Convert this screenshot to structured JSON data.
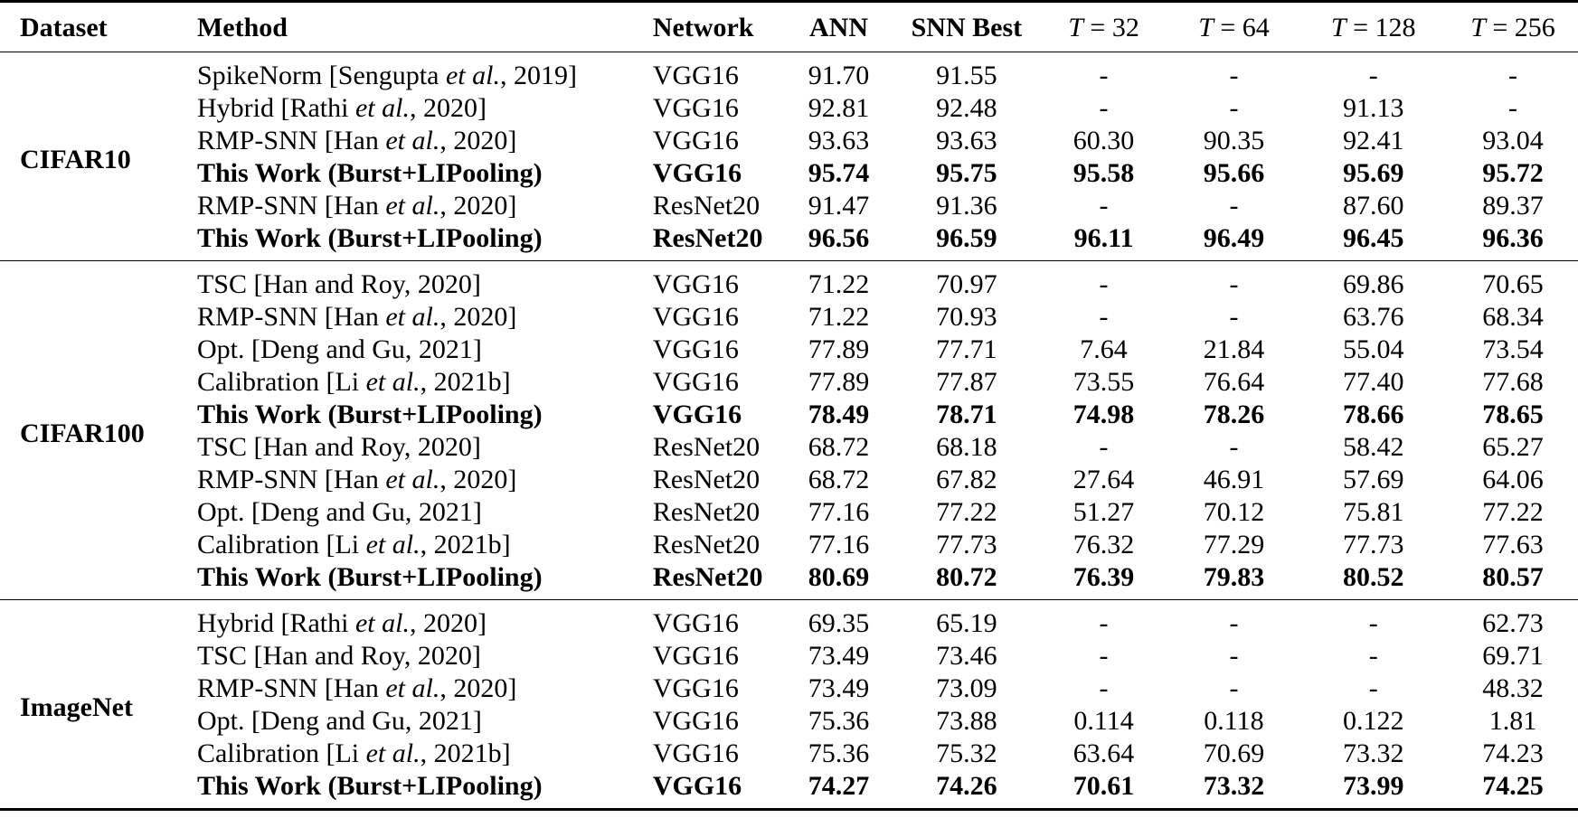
{
  "table": {
    "headers": {
      "dataset": "Dataset",
      "method": "Method",
      "network": "Network",
      "ann": "ANN",
      "snn_best": "SNN Best",
      "t32": {
        "var": "T",
        "op": " = ",
        "val": "32"
      },
      "t64": {
        "var": "T",
        "op": " = ",
        "val": "64"
      },
      "t128": {
        "var": "T",
        "op": " = ",
        "val": "128"
      },
      "t256": {
        "var": "T",
        "op": " = ",
        "val": "256"
      }
    },
    "groups": [
      {
        "dataset": "CIFAR10",
        "rows": [
          {
            "method_pre": "SpikeNorm [Sengupta ",
            "method_it": "et al.",
            "method_post": ", 2019]",
            "network": "VGG16",
            "ann": "91.70",
            "snn_best": "91.55",
            "t32": "-",
            "t64": "-",
            "t128": "-",
            "t256": "-",
            "bold": false
          },
          {
            "method_pre": "Hybrid [Rathi ",
            "method_it": "et al.",
            "method_post": ", 2020]",
            "network": "VGG16",
            "ann": "92.81",
            "snn_best": "92.48",
            "t32": "-",
            "t64": "-",
            "t128": "91.13",
            "t256": "-",
            "bold": false
          },
          {
            "method_pre": "RMP-SNN [Han ",
            "method_it": "et al.",
            "method_post": ", 2020]",
            "network": "VGG16",
            "ann": "93.63",
            "snn_best": "93.63",
            "t32": "60.30",
            "t64": "90.35",
            "t128": "92.41",
            "t256": "93.04",
            "bold": false
          },
          {
            "method_pre": "This Work (Burst+LIPooling)",
            "method_it": "",
            "method_post": "",
            "network": "VGG16",
            "ann": "95.74",
            "snn_best": "95.75",
            "t32": "95.58",
            "t64": "95.66",
            "t128": "95.69",
            "t256": "95.72",
            "bold": true
          },
          {
            "method_pre": "RMP-SNN [Han ",
            "method_it": "et al.",
            "method_post": ", 2020]",
            "network": "ResNet20",
            "ann": "91.47",
            "snn_best": "91.36",
            "t32": "-",
            "t64": "-",
            "t128": "87.60",
            "t256": "89.37",
            "bold": false
          },
          {
            "method_pre": "This Work (Burst+LIPooling)",
            "method_it": "",
            "method_post": "",
            "network": "ResNet20",
            "ann": "96.56",
            "snn_best": "96.59",
            "t32": "96.11",
            "t64": "96.49",
            "t128": "96.45",
            "t256": "96.36",
            "bold": true
          }
        ]
      },
      {
        "dataset": "CIFAR100",
        "rows": [
          {
            "method_pre": "TSC [Han and Roy, 2020]",
            "method_it": "",
            "method_post": "",
            "network": "VGG16",
            "ann": "71.22",
            "snn_best": "70.97",
            "t32": "-",
            "t64": "-",
            "t128": "69.86",
            "t256": "70.65",
            "bold": false
          },
          {
            "method_pre": "RMP-SNN [Han ",
            "method_it": "et al.",
            "method_post": ", 2020]",
            "network": "VGG16",
            "ann": "71.22",
            "snn_best": "70.93",
            "t32": "-",
            "t64": "-",
            "t128": "63.76",
            "t256": "68.34",
            "bold": false
          },
          {
            "method_pre": "Opt. [Deng and Gu, 2021]",
            "method_it": "",
            "method_post": "",
            "network": "VGG16",
            "ann": "77.89",
            "snn_best": "77.71",
            "t32": "7.64",
            "t64": "21.84",
            "t128": "55.04",
            "t256": "73.54",
            "bold": false
          },
          {
            "method_pre": "Calibration [Li ",
            "method_it": "et al.",
            "method_post": ", 2021b]",
            "network": "VGG16",
            "ann": "77.89",
            "snn_best": "77.87",
            "t32": "73.55",
            "t64": "76.64",
            "t128": "77.40",
            "t256": "77.68",
            "bold": false
          },
          {
            "method_pre": "This Work (Burst+LIPooling)",
            "method_it": "",
            "method_post": "",
            "network": "VGG16",
            "ann": "78.49",
            "snn_best": "78.71",
            "t32": "74.98",
            "t64": "78.26",
            "t128": "78.66",
            "t256": "78.65",
            "bold": true
          },
          {
            "method_pre": "TSC [Han and Roy, 2020]",
            "method_it": "",
            "method_post": "",
            "network": "ResNet20",
            "ann": "68.72",
            "snn_best": "68.18",
            "t32": "-",
            "t64": "-",
            "t128": "58.42",
            "t256": "65.27",
            "bold": false
          },
          {
            "method_pre": "RMP-SNN [Han ",
            "method_it": "et al.",
            "method_post": ", 2020]",
            "network": "ResNet20",
            "ann": "68.72",
            "snn_best": "67.82",
            "t32": "27.64",
            "t64": "46.91",
            "t128": "57.69",
            "t256": "64.06",
            "bold": false
          },
          {
            "method_pre": "Opt. [Deng and Gu, 2021]",
            "method_it": "",
            "method_post": "",
            "network": "ResNet20",
            "ann": "77.16",
            "snn_best": "77.22",
            "t32": "51.27",
            "t64": "70.12",
            "t128": "75.81",
            "t256": "77.22",
            "bold": false
          },
          {
            "method_pre": "Calibration [Li ",
            "method_it": "et al.",
            "method_post": ", 2021b]",
            "network": "ResNet20",
            "ann": "77.16",
            "snn_best": "77.73",
            "t32": "76.32",
            "t64": "77.29",
            "t128": "77.73",
            "t256": "77.63",
            "bold": false
          },
          {
            "method_pre": "This Work (Burst+LIPooling)",
            "method_it": "",
            "method_post": "",
            "network": "ResNet20",
            "ann": "80.69",
            "snn_best": "80.72",
            "t32": "76.39",
            "t64": "79.83",
            "t128": "80.52",
            "t256": "80.57",
            "bold": true
          }
        ]
      },
      {
        "dataset": "ImageNet",
        "rows": [
          {
            "method_pre": "Hybrid [Rathi ",
            "method_it": "et al.",
            "method_post": ", 2020]",
            "network": "VGG16",
            "ann": "69.35",
            "snn_best": "65.19",
            "t32": "-",
            "t64": "-",
            "t128": "-",
            "t256": "62.73",
            "bold": false
          },
          {
            "method_pre": "TSC [Han and Roy, 2020]",
            "method_it": "",
            "method_post": "",
            "network": "VGG16",
            "ann": "73.49",
            "snn_best": "73.46",
            "t32": "-",
            "t64": "-",
            "t128": "-",
            "t256": "69.71",
            "bold": false
          },
          {
            "method_pre": "RMP-SNN [Han ",
            "method_it": "et al.",
            "method_post": ", 2020]",
            "network": "VGG16",
            "ann": "73.49",
            "snn_best": "73.09",
            "t32": "-",
            "t64": "-",
            "t128": "-",
            "t256": "48.32",
            "bold": false
          },
          {
            "method_pre": "Opt. [Deng and Gu, 2021]",
            "method_it": "",
            "method_post": "",
            "network": "VGG16",
            "ann": "75.36",
            "snn_best": "73.88",
            "t32": "0.114",
            "t64": "0.118",
            "t128": "0.122",
            "t256": "1.81",
            "bold": false
          },
          {
            "method_pre": "Calibration [Li ",
            "method_it": "et al.",
            "method_post": ", 2021b]",
            "network": "VGG16",
            "ann": "75.36",
            "snn_best": "75.32",
            "t32": "63.64",
            "t64": "70.69",
            "t128": "73.32",
            "t256": "74.23",
            "bold": false
          },
          {
            "method_pre": "This Work (Burst+LIPooling)",
            "method_it": "",
            "method_post": "",
            "network": "VGG16",
            "ann": "74.27",
            "snn_best": "74.26",
            "t32": "70.61",
            "t64": "73.32",
            "t128": "73.99",
            "t256": "74.25",
            "bold": true
          }
        ]
      }
    ]
  },
  "chart_data": {
    "type": "table",
    "title": "",
    "columns": [
      "Dataset",
      "Method",
      "Network",
      "ANN",
      "SNN Best",
      "T = 32",
      "T = 64",
      "T = 128",
      "T = 256"
    ],
    "rows": [
      [
        "CIFAR10",
        "SpikeNorm [Sengupta et al., 2019]",
        "VGG16",
        "91.70",
        "91.55",
        "-",
        "-",
        "-",
        "-"
      ],
      [
        "CIFAR10",
        "Hybrid [Rathi et al., 2020]",
        "VGG16",
        "92.81",
        "92.48",
        "-",
        "-",
        "91.13",
        "-"
      ],
      [
        "CIFAR10",
        "RMP-SNN [Han et al., 2020]",
        "VGG16",
        "93.63",
        "93.63",
        "60.30",
        "90.35",
        "92.41",
        "93.04"
      ],
      [
        "CIFAR10",
        "This Work (Burst+LIPooling)",
        "VGG16",
        "95.74",
        "95.75",
        "95.58",
        "95.66",
        "95.69",
        "95.72"
      ],
      [
        "CIFAR10",
        "RMP-SNN [Han et al., 2020]",
        "ResNet20",
        "91.47",
        "91.36",
        "-",
        "-",
        "87.60",
        "89.37"
      ],
      [
        "CIFAR10",
        "This Work (Burst+LIPooling)",
        "ResNet20",
        "96.56",
        "96.59",
        "96.11",
        "96.49",
        "96.45",
        "96.36"
      ],
      [
        "CIFAR100",
        "TSC [Han and Roy, 2020]",
        "VGG16",
        "71.22",
        "70.97",
        "-",
        "-",
        "69.86",
        "70.65"
      ],
      [
        "CIFAR100",
        "RMP-SNN [Han et al., 2020]",
        "VGG16",
        "71.22",
        "70.93",
        "-",
        "-",
        "63.76",
        "68.34"
      ],
      [
        "CIFAR100",
        "Opt. [Deng and Gu, 2021]",
        "VGG16",
        "77.89",
        "77.71",
        "7.64",
        "21.84",
        "55.04",
        "73.54"
      ],
      [
        "CIFAR100",
        "Calibration [Li et al., 2021b]",
        "VGG16",
        "77.89",
        "77.87",
        "73.55",
        "76.64",
        "77.40",
        "77.68"
      ],
      [
        "CIFAR100",
        "This Work (Burst+LIPooling)",
        "VGG16",
        "78.49",
        "78.71",
        "74.98",
        "78.26",
        "78.66",
        "78.65"
      ],
      [
        "CIFAR100",
        "TSC [Han and Roy, 2020]",
        "ResNet20",
        "68.72",
        "68.18",
        "-",
        "-",
        "58.42",
        "65.27"
      ],
      [
        "CIFAR100",
        "RMP-SNN [Han et al., 2020]",
        "ResNet20",
        "68.72",
        "67.82",
        "27.64",
        "46.91",
        "57.69",
        "64.06"
      ],
      [
        "CIFAR100",
        "Opt. [Deng and Gu, 2021]",
        "ResNet20",
        "77.16",
        "77.22",
        "51.27",
        "70.12",
        "75.81",
        "77.22"
      ],
      [
        "CIFAR100",
        "Calibration [Li et al., 2021b]",
        "ResNet20",
        "77.16",
        "77.73",
        "76.32",
        "77.29",
        "77.73",
        "77.63"
      ],
      [
        "CIFAR100",
        "This Work (Burst+LIPooling)",
        "ResNet20",
        "80.69",
        "80.72",
        "76.39",
        "79.83",
        "80.52",
        "80.57"
      ],
      [
        "ImageNet",
        "Hybrid [Rathi et al., 2020]",
        "VGG16",
        "69.35",
        "65.19",
        "-",
        "-",
        "-",
        "62.73"
      ],
      [
        "ImageNet",
        "TSC [Han and Roy, 2020]",
        "VGG16",
        "73.49",
        "73.46",
        "-",
        "-",
        "-",
        "69.71"
      ],
      [
        "ImageNet",
        "RMP-SNN [Han et al., 2020]",
        "VGG16",
        "73.49",
        "73.09",
        "-",
        "-",
        "-",
        "48.32"
      ],
      [
        "ImageNet",
        "Opt. [Deng and Gu, 2021]",
        "VGG16",
        "75.36",
        "73.88",
        "0.114",
        "0.118",
        "0.122",
        "1.81"
      ],
      [
        "ImageNet",
        "Calibration [Li et al., 2021b]",
        "VGG16",
        "75.36",
        "75.32",
        "63.64",
        "70.69",
        "73.32",
        "74.23"
      ],
      [
        "ImageNet",
        "This Work (Burst+LIPooling)",
        "VGG16",
        "74.27",
        "74.26",
        "70.61",
        "73.32",
        "73.99",
        "74.25"
      ]
    ],
    "bold_rows": [
      "This Work (Burst+LIPooling)"
    ]
  }
}
